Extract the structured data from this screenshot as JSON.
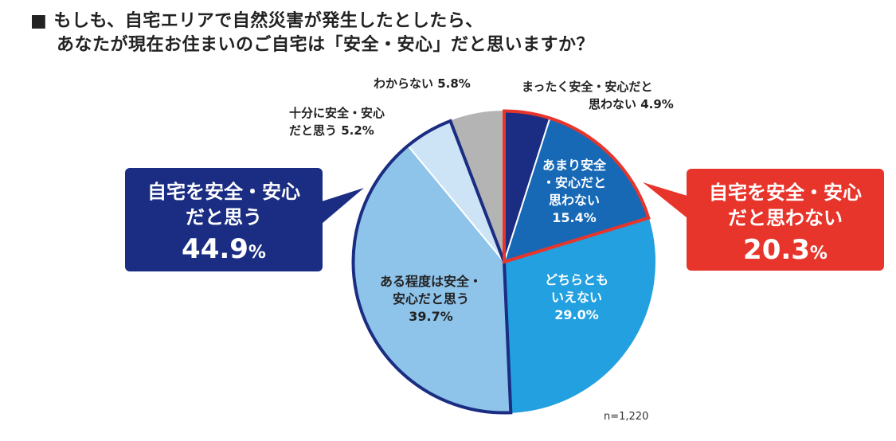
{
  "title": {
    "marker": "■",
    "line1": "もしも、自宅エリアで自然災害が発生したとしたら、",
    "line2": "あなたが現在お住まいのご自宅は「安全・安心」だと思いますか？"
  },
  "note": "n=1,220",
  "callouts": {
    "safe": {
      "line1": "自宅を安全・安心",
      "line2": "だと思う",
      "value": "44.9",
      "unit": "%"
    },
    "unsafe": {
      "line1": "自宅を安全・安心",
      "line2": "だと思わない",
      "value": "20.3",
      "unit": "%"
    }
  },
  "colors": {
    "safe_callout": "#1a2d82",
    "unsafe_callout": "#e8352b",
    "group_outline_safe": "#1a2d82",
    "group_outline_unsafe": "#e8352b"
  },
  "chart_data": {
    "type": "pie",
    "start": "12 o'clock",
    "direction": "clockwise",
    "slices": [
      {
        "key": "zenzen",
        "label_lines": [
          "まったく安全・安心だと",
          "思わない 4.9%"
        ],
        "value": 4.9,
        "color": "#1a2d82",
        "label_inside": false
      },
      {
        "key": "amari",
        "label_lines": [
          "あまり安全",
          "・安心だと",
          "思わない",
          "15.4%"
        ],
        "value": 15.4,
        "color": "#1769b6",
        "label_inside": true
      },
      {
        "key": "dochira",
        "label_lines": [
          "どちらとも",
          "いえない",
          "29.0%"
        ],
        "value": 29.0,
        "color": "#22a0df",
        "label_inside": true
      },
      {
        "key": "aruteido",
        "label_lines": [
          "ある程度は安全・",
          "安心だと思う",
          "39.7%"
        ],
        "value": 39.7,
        "color": "#8ec3ea",
        "label_inside": true
      },
      {
        "key": "jubun",
        "label_lines": [
          "十分に安全・安心",
          "だと思う 5.2%"
        ],
        "value": 5.2,
        "color": "#cde4f6",
        "label_inside": false
      },
      {
        "key": "wakaranai",
        "label_lines": [
          "わからない 5.8%"
        ],
        "value": 5.8,
        "color": "#b4b4b4",
        "label_inside": false
      }
    ],
    "groups": [
      {
        "name": "自宅を安全・安心だと思う",
        "value": 44.9,
        "slices": [
          "aruteido",
          "jubun"
        ]
      },
      {
        "name": "自宅を安全・安心だと思わない",
        "value": 20.3,
        "slices": [
          "zenzen",
          "amari"
        ]
      }
    ]
  }
}
